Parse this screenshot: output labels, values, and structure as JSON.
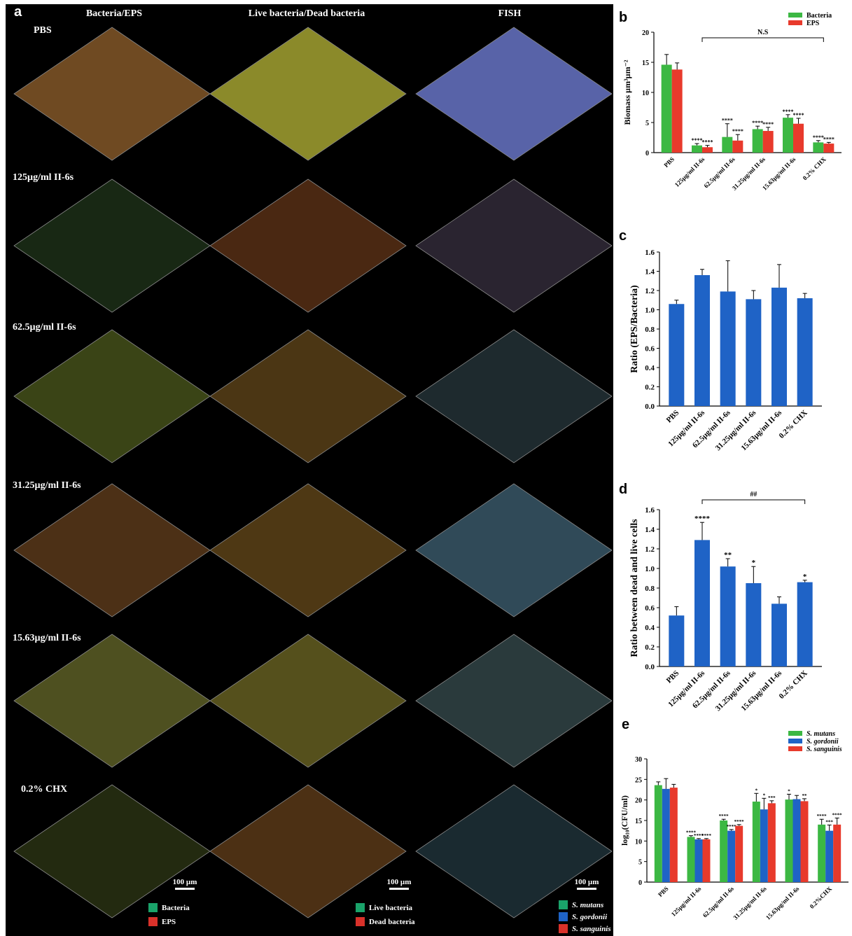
{
  "panel_letters": {
    "a": "a",
    "b": "b",
    "c": "c",
    "d": "d",
    "e": "e"
  },
  "column_headers": [
    "Bacteria/EPS",
    "Live bacteria/Dead bacteria",
    "FISH"
  ],
  "row_labels": [
    "PBS",
    "125µg/ml II-6s",
    "62.5µg/ml II-6s",
    "31.25µg/ml II-6s",
    "15.63µg/ml II-6s",
    "0.2% CHX"
  ],
  "scale_bar": "100 µm",
  "image_legends": {
    "col1": [
      {
        "label": "Bacteria",
        "color": "#1aa36a"
      },
      {
        "label": "EPS",
        "color": "#d9312a"
      }
    ],
    "col2": [
      {
        "label": "Live bacteria",
        "color": "#1aa36a"
      },
      {
        "label": "Dead bacteria",
        "color": "#d9312a"
      }
    ],
    "col3": [
      {
        "label": "S. mutans",
        "color": "#1aa36a"
      },
      {
        "label": "S. gordonii",
        "color": "#1f63c6"
      },
      {
        "label": "S. sanguinis",
        "color": "#d9312a"
      }
    ]
  },
  "tile_colors": [
    [
      "#6f4a22",
      "#8b8a2a",
      "#5863a8"
    ],
    [
      "#182814",
      "#4a2812",
      "#2a2430"
    ],
    [
      "#3a4416",
      "#4b3614",
      "#1e2a2e"
    ],
    [
      "#4c3016",
      "#4e3814",
      "#304a58"
    ],
    [
      "#4e5020",
      "#55501c",
      "#2a3a3c"
    ],
    [
      "#232a10",
      "#4c3014",
      "#1a2a30"
    ]
  ],
  "chart_data": [
    {
      "id": "b",
      "type": "bar",
      "categories": [
        "PBS",
        "125µg/ml II-6s",
        "62.5µg/ml II-6s",
        "31.25µg/ml II-6s",
        "15.63µg/ml II-6s",
        "0.2% CHX"
      ],
      "series": [
        {
          "name": "Bacteria",
          "color": "#3cb843",
          "values": [
            14.6,
            1.2,
            2.6,
            3.9,
            5.8,
            1.7
          ],
          "errors": [
            1.7,
            0.3,
            2.2,
            0.5,
            0.5,
            0.3
          ]
        },
        {
          "name": "EPS",
          "color": "#e83a2c",
          "values": [
            13.8,
            0.9,
            2.0,
            3.6,
            4.8,
            1.5
          ],
          "errors": [
            1.1,
            0.3,
            1.0,
            0.6,
            0.9,
            0.2
          ]
        }
      ],
      "annotations": [
        "",
        "****",
        "****",
        "****",
        "****",
        "****"
      ],
      "bracket_label": "N.S",
      "ylabel": "Biomass µm³µm⁻²",
      "ylim": [
        0,
        20
      ],
      "yticks": [
        0,
        5,
        10,
        15,
        20
      ],
      "legend": "top-right"
    },
    {
      "id": "c",
      "type": "bar",
      "categories": [
        "PBS",
        "125µg/ml II-6s",
        "62.5µg/ml II-6s",
        "31.25µg/ml II-6s",
        "15.63µg/ml II-6s",
        "0.2% CHX"
      ],
      "series": [
        {
          "color": "#1f63c6",
          "values": [
            1.06,
            1.36,
            1.19,
            1.11,
            1.23,
            1.12
          ],
          "errors": [
            0.04,
            0.06,
            0.32,
            0.09,
            0.24,
            0.05
          ]
        }
      ],
      "ylabel": "Ratio (EPS/Bacteria)",
      "ylim": [
        0,
        1.6
      ],
      "yticks": [
        "0.0",
        "0.2",
        "0.4",
        "0.6",
        "0.8",
        "1.0",
        "1.2",
        "1.4",
        "1.6"
      ]
    },
    {
      "id": "d",
      "type": "bar",
      "categories": [
        "PBS",
        "125µg/ml II-6s",
        "62.5µg/ml II-6s",
        "31.25µg/ml II-6s",
        "15.63µg/ml II-6s",
        "0.2% CHX"
      ],
      "series": [
        {
          "color": "#1f63c6",
          "values": [
            0.52,
            1.29,
            1.02,
            0.85,
            0.64,
            0.86
          ],
          "errors": [
            0.09,
            0.18,
            0.08,
            0.17,
            0.07,
            0.02
          ]
        }
      ],
      "annotations": [
        "",
        "****",
        "**",
        "*",
        "",
        "*"
      ],
      "bracket_label": "##",
      "ylabel": "Ratio between dead and live cells",
      "ylim": [
        0,
        1.6
      ],
      "yticks": [
        "0.0",
        "0.2",
        "0.4",
        "0.6",
        "0.8",
        "1.0",
        "1.2",
        "1.4",
        "1.6"
      ]
    },
    {
      "id": "e",
      "type": "bar",
      "categories": [
        "PBS",
        "125µg/ml II-6s",
        "62.5µg/ml II-6s",
        "31.25µg/ml II-6s",
        "15.63µg/ml II-6s",
        "0.2%CHX"
      ],
      "series": [
        {
          "name": "S. mutans",
          "color": "#3cb843",
          "values": [
            23.6,
            11.0,
            15.0,
            19.6,
            20.1,
            14.0
          ],
          "errors": [
            0.8,
            0.3,
            0.3,
            2.0,
            1.3,
            1.3
          ]
        },
        {
          "name": "S. gordonii",
          "color": "#1f63c6",
          "values": [
            22.7,
            10.4,
            12.5,
            17.7,
            20.2,
            12.5
          ],
          "errors": [
            2.5,
            0.2,
            0.3,
            2.7,
            0.9,
            1.4
          ]
        },
        {
          "name": "S. sanguinis",
          "color": "#e83a2c",
          "values": [
            23.0,
            10.4,
            13.7,
            19.2,
            19.7,
            14.0
          ],
          "errors": [
            0.8,
            0.2,
            0.3,
            0.6,
            0.6,
            1.6
          ]
        }
      ],
      "annotations": [
        [
          "",
          "",
          ""
        ],
        [
          "****",
          "****",
          "****"
        ],
        [
          "****",
          "****",
          "****"
        ],
        [
          "*",
          "*",
          "***"
        ],
        [
          "*",
          "",
          "**"
        ],
        [
          "****",
          "***",
          "****"
        ]
      ],
      "ylabel": "log₁₀(CFU/ml)",
      "ylim": [
        0,
        30
      ],
      "yticks": [
        0,
        5,
        10,
        15,
        20,
        25,
        30
      ],
      "legend": "top-right"
    }
  ]
}
